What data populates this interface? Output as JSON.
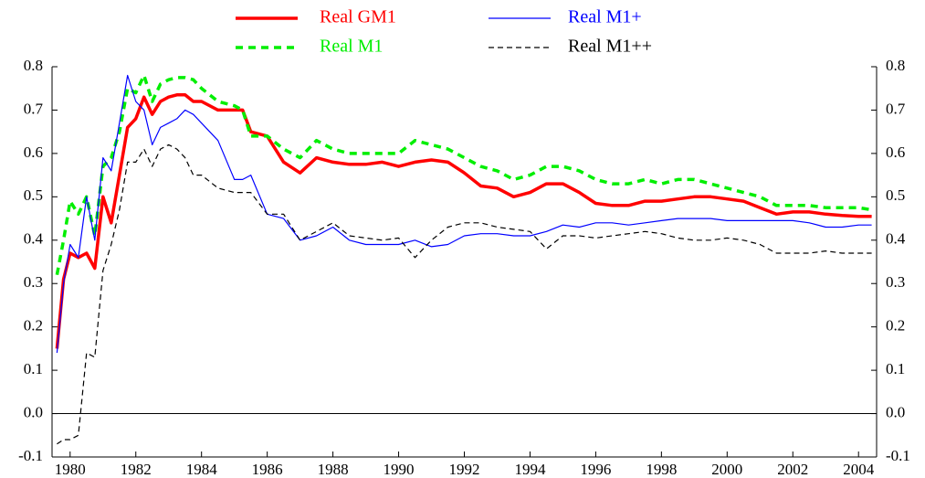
{
  "chart_data": {
    "type": "line",
    "x": [
      1979.6,
      1979.8,
      1980.0,
      1980.25,
      1980.5,
      1980.75,
      1981.0,
      1981.25,
      1981.5,
      1981.75,
      1982.0,
      1982.25,
      1982.5,
      1982.75,
      1983.0,
      1983.25,
      1983.5,
      1983.75,
      1984.0,
      1984.5,
      1985.0,
      1985.25,
      1985.5,
      1986.0,
      1986.5,
      1987.0,
      1987.5,
      1988.0,
      1988.5,
      1989.0,
      1989.5,
      1990.0,
      1990.5,
      1991.0,
      1991.5,
      1992.0,
      1992.5,
      1993.0,
      1993.5,
      1994.0,
      1994.5,
      1995.0,
      1995.5,
      1996.0,
      1996.5,
      1997.0,
      1997.5,
      1998.0,
      1998.5,
      1999.0,
      1999.5,
      2000.0,
      2000.5,
      2001.0,
      2001.5,
      2002.0,
      2002.5,
      2003.0,
      2003.5,
      2004.0,
      2004.4
    ],
    "series": [
      {
        "name": "Real GM1",
        "color": "#ff0000",
        "style": "solid",
        "values": [
          0.15,
          0.31,
          0.37,
          0.36,
          0.37,
          0.335,
          0.5,
          0.44,
          0.55,
          0.66,
          0.68,
          0.73,
          0.69,
          0.72,
          0.73,
          0.735,
          0.735,
          0.72,
          0.72,
          0.7,
          0.7,
          0.7,
          0.65,
          0.64,
          0.58,
          0.555,
          0.59,
          0.58,
          0.575,
          0.575,
          0.58,
          0.57,
          0.58,
          0.585,
          0.58,
          0.555,
          0.525,
          0.52,
          0.5,
          0.51,
          0.53,
          0.53,
          0.51,
          0.485,
          0.48,
          0.48,
          0.49,
          0.49,
          0.495,
          0.5,
          0.5,
          0.495,
          0.49,
          0.475,
          0.46,
          0.465,
          0.465,
          0.46,
          0.457,
          0.455,
          0.455
        ]
      },
      {
        "name": "Real M1",
        "color": "#00ee00",
        "style": "dashed",
        "values": [
          0.32,
          0.4,
          0.49,
          0.46,
          0.5,
          0.41,
          0.57,
          0.59,
          0.65,
          0.75,
          0.74,
          0.78,
          0.72,
          0.76,
          0.77,
          0.775,
          0.775,
          0.77,
          0.75,
          0.72,
          0.71,
          0.7,
          0.64,
          0.64,
          0.61,
          0.59,
          0.63,
          0.61,
          0.6,
          0.6,
          0.6,
          0.6,
          0.63,
          0.62,
          0.61,
          0.59,
          0.57,
          0.56,
          0.54,
          0.55,
          0.57,
          0.57,
          0.56,
          0.54,
          0.53,
          0.53,
          0.54,
          0.53,
          0.54,
          0.54,
          0.53,
          0.52,
          0.51,
          0.5,
          0.48,
          0.48,
          0.48,
          0.475,
          0.475,
          0.475,
          0.47
        ]
      },
      {
        "name": "Real M1+",
        "color": "#0000ff",
        "style": "solid",
        "values": [
          0.14,
          0.3,
          0.39,
          0.36,
          0.5,
          0.4,
          0.59,
          0.56,
          0.67,
          0.78,
          0.72,
          0.7,
          0.62,
          0.66,
          0.67,
          0.68,
          0.7,
          0.69,
          0.67,
          0.63,
          0.54,
          0.54,
          0.55,
          0.46,
          0.45,
          0.4,
          0.41,
          0.43,
          0.4,
          0.39,
          0.39,
          0.39,
          0.4,
          0.385,
          0.39,
          0.41,
          0.415,
          0.415,
          0.41,
          0.41,
          0.42,
          0.435,
          0.43,
          0.44,
          0.44,
          0.435,
          0.44,
          0.445,
          0.45,
          0.45,
          0.45,
          0.445,
          0.445,
          0.445,
          0.445,
          0.445,
          0.44,
          0.43,
          0.43,
          0.435,
          0.435
        ]
      },
      {
        "name": "Real M1++",
        "color": "#000000",
        "style": "dashed",
        "values": [
          -0.07,
          -0.06,
          -0.06,
          -0.05,
          0.14,
          0.13,
          0.33,
          0.39,
          0.47,
          0.58,
          0.58,
          0.61,
          0.57,
          0.61,
          0.62,
          0.61,
          0.59,
          0.55,
          0.55,
          0.52,
          0.51,
          0.51,
          0.51,
          0.46,
          0.46,
          0.4,
          0.42,
          0.44,
          0.41,
          0.405,
          0.4,
          0.405,
          0.36,
          0.4,
          0.43,
          0.44,
          0.44,
          0.43,
          0.425,
          0.42,
          0.38,
          0.41,
          0.41,
          0.405,
          0.41,
          0.415,
          0.42,
          0.415,
          0.405,
          0.4,
          0.4,
          0.405,
          0.4,
          0.39,
          0.37,
          0.37,
          0.37,
          0.375,
          0.37,
          0.37,
          0.37
        ]
      }
    ],
    "xlim": [
      1979.45,
      2004.55
    ],
    "xticks": [
      1980,
      1982,
      1984,
      1986,
      1988,
      1990,
      1992,
      1994,
      1996,
      1998,
      2000,
      2002,
      2004
    ],
    "ylim": [
      -0.1,
      0.8
    ],
    "yticks": [
      -0.1,
      {
        "value": 0,
        "label": "0.0"
      },
      0.1,
      0.2,
      0.3,
      0.4,
      0.5,
      0.6,
      0.7,
      0.8
    ],
    "zero_line": true,
    "legend": "top"
  }
}
